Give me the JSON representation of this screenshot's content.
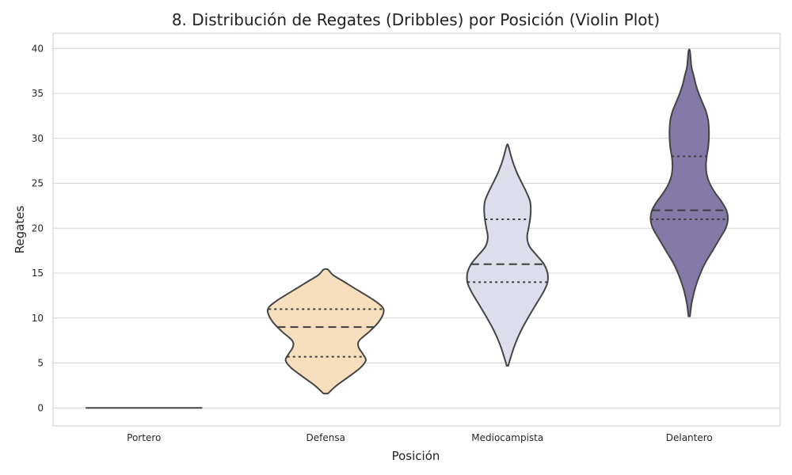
{
  "chart_data": {
    "type": "violin",
    "title": "8. Distribución de Regates (Dribbles) por Posición (Violin Plot)",
    "xlabel": "Posición",
    "ylabel": "Regates",
    "ylim": [
      -2,
      41.7
    ],
    "yticks": [
      "0",
      "5",
      "10",
      "15",
      "20",
      "25",
      "30",
      "35",
      "40"
    ],
    "ytick_values": [
      0,
      5,
      10,
      15,
      20,
      25,
      30,
      35,
      40
    ],
    "categories": [
      "Portero",
      "Defensa",
      "Mediocampista",
      "Delantero"
    ],
    "grid": true,
    "inner": "quartile",
    "series": [
      {
        "category": "Portero",
        "color": "#444444",
        "min": 0,
        "max": 0,
        "q1": 0,
        "median": 0,
        "q3": 0,
        "density": [
          [
            0,
            0.8
          ]
        ]
      },
      {
        "category": "Defensa",
        "color": "#f7dfbd",
        "min": 1.6,
        "max": 15.4,
        "q1": 5.7,
        "median": 9.0,
        "q3": 11.0,
        "density": [
          [
            1.6,
            0.03
          ],
          [
            2.5,
            0.15
          ],
          [
            3.5,
            0.32
          ],
          [
            4.5,
            0.48
          ],
          [
            5.3,
            0.55
          ],
          [
            6.0,
            0.51
          ],
          [
            6.8,
            0.45
          ],
          [
            7.5,
            0.46
          ],
          [
            8.5,
            0.6
          ],
          [
            9.5,
            0.72
          ],
          [
            10.5,
            0.79
          ],
          [
            11.2,
            0.78
          ],
          [
            12.0,
            0.66
          ],
          [
            13.0,
            0.46
          ],
          [
            14.0,
            0.26
          ],
          [
            14.8,
            0.1
          ],
          [
            15.4,
            0.03
          ]
        ]
      },
      {
        "category": "Mediocampista",
        "color": "#dcdeeb",
        "min": 4.7,
        "max": 29.2,
        "q1": 14.0,
        "median": 16.0,
        "q3": 21.0,
        "density": [
          [
            4.7,
            0.01
          ],
          [
            5.5,
            0.04
          ],
          [
            7.0,
            0.1
          ],
          [
            8.5,
            0.18
          ],
          [
            10.0,
            0.28
          ],
          [
            11.5,
            0.39
          ],
          [
            13.0,
            0.5
          ],
          [
            14.0,
            0.55
          ],
          [
            15.0,
            0.55
          ],
          [
            16.0,
            0.5
          ],
          [
            17.0,
            0.4
          ],
          [
            18.0,
            0.3
          ],
          [
            19.0,
            0.27
          ],
          [
            20.0,
            0.29
          ],
          [
            21.0,
            0.31
          ],
          [
            22.0,
            0.32
          ],
          [
            23.0,
            0.31
          ],
          [
            24.0,
            0.26
          ],
          [
            25.0,
            0.2
          ],
          [
            26.0,
            0.14
          ],
          [
            27.0,
            0.09
          ],
          [
            28.0,
            0.05
          ],
          [
            29.2,
            0.01
          ]
        ]
      },
      {
        "category": "Delantero",
        "color": "#8579a8",
        "min": 10.2,
        "max": 39.7,
        "q1": 21.0,
        "median": 22.0,
        "q3": 28.0,
        "density": [
          [
            10.2,
            0.01
          ],
          [
            11.5,
            0.03
          ],
          [
            13.0,
            0.07
          ],
          [
            14.5,
            0.13
          ],
          [
            16.0,
            0.21
          ],
          [
            17.5,
            0.32
          ],
          [
            19.0,
            0.43
          ],
          [
            20.0,
            0.5
          ],
          [
            21.0,
            0.53
          ],
          [
            22.0,
            0.51
          ],
          [
            23.0,
            0.44
          ],
          [
            24.0,
            0.35
          ],
          [
            25.0,
            0.28
          ],
          [
            26.0,
            0.24
          ],
          [
            27.0,
            0.23
          ],
          [
            28.0,
            0.24
          ],
          [
            29.0,
            0.26
          ],
          [
            30.0,
            0.27
          ],
          [
            31.0,
            0.27
          ],
          [
            32.0,
            0.26
          ],
          [
            33.0,
            0.23
          ],
          [
            34.0,
            0.18
          ],
          [
            35.0,
            0.13
          ],
          [
            36.0,
            0.09
          ],
          [
            37.0,
            0.06
          ],
          [
            38.0,
            0.03
          ],
          [
            39.7,
            0.01
          ]
        ]
      }
    ]
  }
}
